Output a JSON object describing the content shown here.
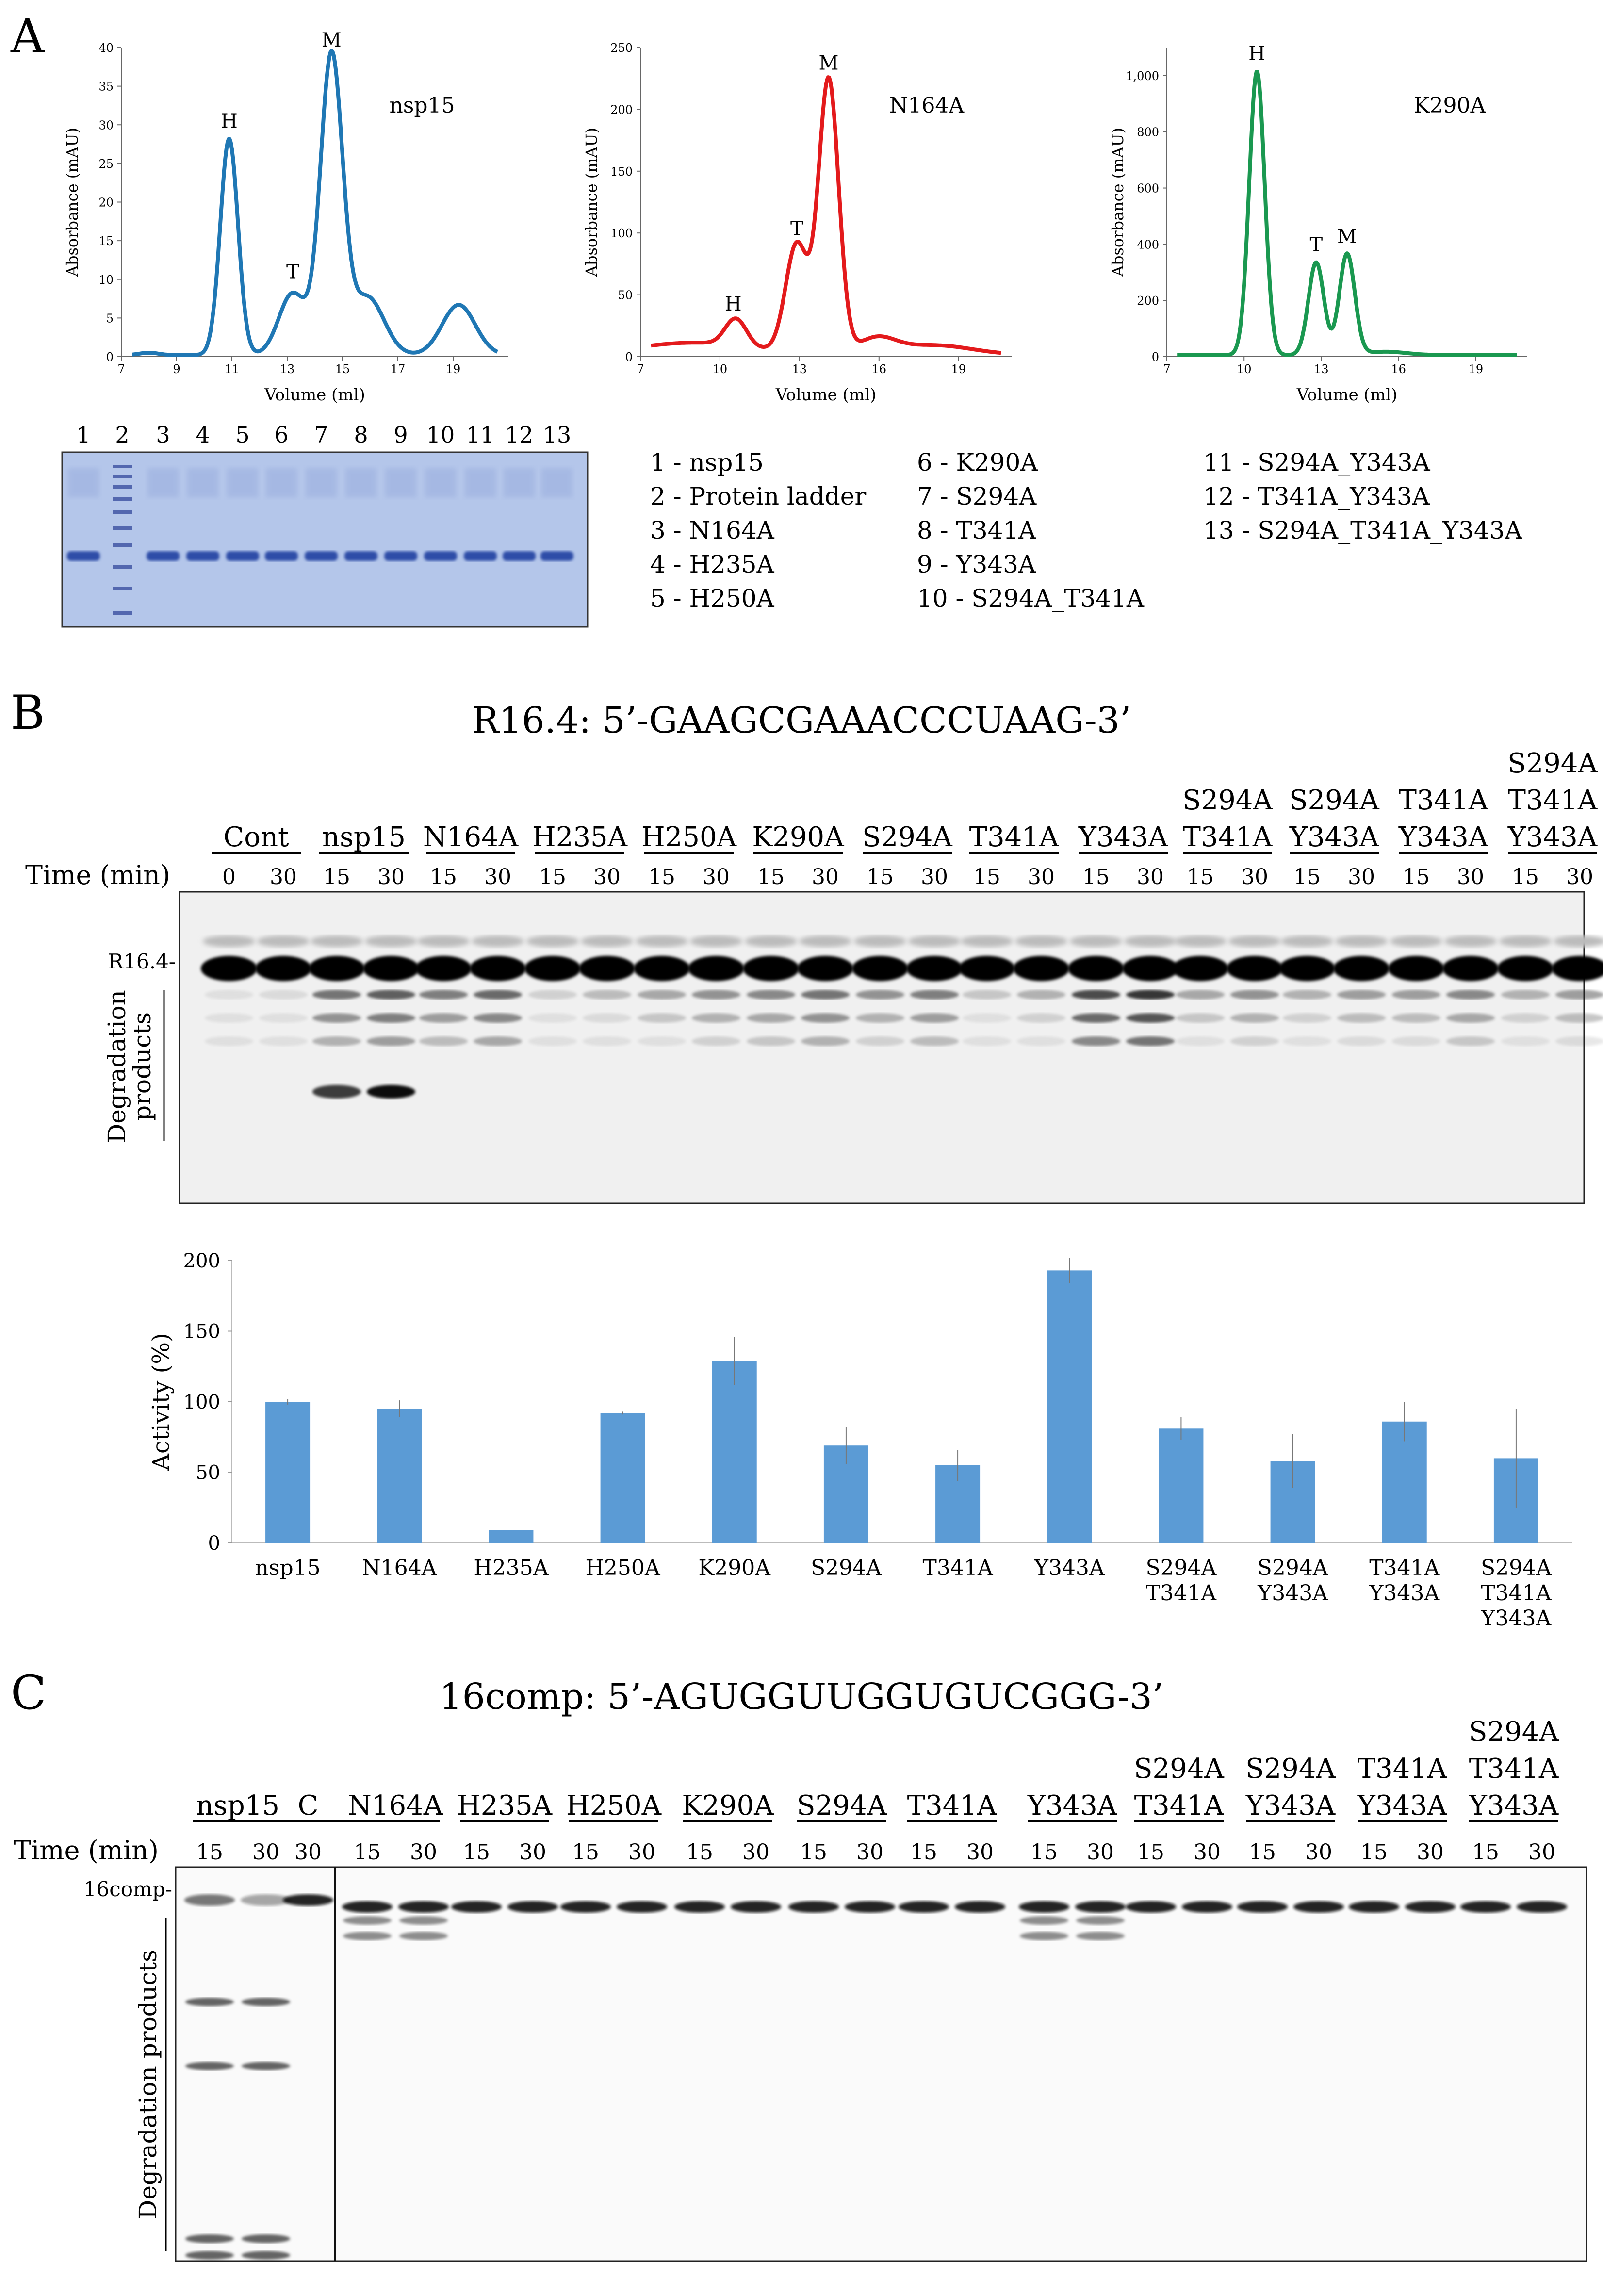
{
  "figure": {
    "panels": {
      "A": "A",
      "B": "B",
      "C": "C"
    }
  },
  "panelA": {
    "chromatograms": [
      {
        "label": "nsp15",
        "color": "#1f77b4",
        "ylabel": "Absorbance (mAU)",
        "xlabel": "Volume (ml)",
        "yticks": [
          "0",
          "5",
          "10",
          "15",
          "20",
          "25",
          "30",
          "35",
          "40"
        ],
        "ymax": 40,
        "xticks": [
          "7",
          "9",
          "11",
          "13",
          "15",
          "17",
          "19"
        ],
        "peaks": [
          {
            "name": "H",
            "x": 10.9,
            "y": 28
          },
          {
            "name": "T",
            "x": 13.2,
            "y": 8.5
          },
          {
            "name": "M",
            "x": 14.6,
            "y": 38.5
          }
        ]
      },
      {
        "label": "N164A",
        "color": "#e31a1c",
        "ylabel": "Absorbance (mAU)",
        "xlabel": "Volume (ml)",
        "yticks": [
          "0",
          "50",
          "100",
          "150",
          "200",
          "250"
        ],
        "ymax": 250,
        "xticks": [
          "7",
          "10",
          "13",
          "16",
          "19"
        ],
        "peaks": [
          {
            "name": "H",
            "x": 10.5,
            "y": 27
          },
          {
            "name": "T",
            "x": 12.9,
            "y": 88
          },
          {
            "name": "M",
            "x": 14.1,
            "y": 222
          }
        ]
      },
      {
        "label": "K290A",
        "color": "#1a9850",
        "ylabel": "Absorbance (mAU)",
        "xlabel": "Volume (ml)",
        "yticks": [
          "0",
          "200",
          "400",
          "600",
          "800",
          "1,000"
        ],
        "ymax": 1100,
        "xticks": [
          "7",
          "10",
          "13",
          "16",
          "19"
        ],
        "peaks": [
          {
            "name": "H",
            "x": 10.5,
            "y": 1010
          },
          {
            "name": "T",
            "x": 12.8,
            "y": 330
          },
          {
            "name": "M",
            "x": 14.0,
            "y": 360
          }
        ]
      }
    ],
    "gel_lanes": [
      "1",
      "2",
      "3",
      "4",
      "5",
      "6",
      "7",
      "8",
      "9",
      "10",
      "11",
      "12",
      "13"
    ],
    "legend": [
      "1 - nsp15",
      "2 - Protein ladder",
      "3 - N164A",
      "4 - H235A",
      "5 - H250A",
      "6 - K290A",
      "7 - S294A",
      "8 - T341A",
      "9 - Y343A",
      "10 - S294A_T341A",
      "11 - S294A_Y343A",
      "12 - T341A_Y343A",
      "13 - S294A_T341A_Y343A"
    ]
  },
  "panelB": {
    "title": "R16.4: 5’-GAAGCGAAACCCUAAG-3’",
    "time_label": "Time (min)",
    "groups": [
      {
        "lines": [
          "Cont"
        ],
        "times": [
          "0",
          "30"
        ]
      },
      {
        "lines": [
          "nsp15"
        ],
        "times": [
          "15",
          "30"
        ]
      },
      {
        "lines": [
          "N164A"
        ],
        "times": [
          "15",
          "30"
        ]
      },
      {
        "lines": [
          "H235A"
        ],
        "times": [
          "15",
          "30"
        ]
      },
      {
        "lines": [
          "H250A"
        ],
        "times": [
          "15",
          "30"
        ]
      },
      {
        "lines": [
          "K290A"
        ],
        "times": [
          "15",
          "30"
        ]
      },
      {
        "lines": [
          "S294A"
        ],
        "times": [
          "15",
          "30"
        ]
      },
      {
        "lines": [
          "T341A"
        ],
        "times": [
          "15",
          "30"
        ]
      },
      {
        "lines": [
          "Y343A"
        ],
        "times": [
          "15",
          "30"
        ]
      },
      {
        "lines": [
          "S294A",
          "T341A"
        ],
        "times": [
          "15",
          "30"
        ]
      },
      {
        "lines": [
          "S294A",
          "Y343A"
        ],
        "times": [
          "15",
          "30"
        ]
      },
      {
        "lines": [
          "T341A",
          "Y343A"
        ],
        "times": [
          "15",
          "30"
        ]
      },
      {
        "lines": [
          "S294A",
          "T341A",
          "Y343A"
        ],
        "times": [
          "15",
          "30"
        ]
      }
    ],
    "band_label": "R16.4-",
    "degradation_label": [
      "Degradation",
      "products"
    ]
  },
  "chart_data": {
    "type": "bar",
    "title": "",
    "xlabel": "",
    "ylabel": "Activity (%)",
    "ylim": [
      0,
      200
    ],
    "yticks": [
      "0",
      "50",
      "100",
      "150",
      "200"
    ],
    "categories": [
      [
        "nsp15"
      ],
      [
        "N164A"
      ],
      [
        "H235A"
      ],
      [
        "H250A"
      ],
      [
        "K290A"
      ],
      [
        "S294A"
      ],
      [
        "T341A"
      ],
      [
        "Y343A"
      ],
      [
        "S294A",
        "T341A"
      ],
      [
        "S294A",
        "Y343A"
      ],
      [
        "T341A",
        "Y343A"
      ],
      [
        "S294A",
        "T341A",
        "Y343A"
      ]
    ],
    "values": [
      100,
      95,
      9,
      92,
      129,
      69,
      55,
      193,
      81,
      58,
      86,
      60
    ],
    "errors": [
      2,
      6,
      0,
      1,
      17,
      13,
      11,
      9,
      8,
      19,
      14,
      35
    ],
    "color": "#5b9bd5"
  },
  "panelC": {
    "title": "16comp: 5’-AGUGGUUGGUGUCGGG-3’",
    "time_label": "Time (min)",
    "groups": [
      {
        "lines": [
          "nsp15"
        ],
        "times": [
          "15",
          "30"
        ]
      },
      {
        "lines": [
          "C"
        ],
        "times": [
          "30"
        ]
      },
      {
        "lines": [
          "N164A"
        ],
        "times": [
          "15",
          "30"
        ]
      },
      {
        "lines": [
          "H235A"
        ],
        "times": [
          "15",
          "30"
        ]
      },
      {
        "lines": [
          "H250A"
        ],
        "times": [
          "15",
          "30"
        ]
      },
      {
        "lines": [
          "K290A"
        ],
        "times": [
          "15",
          "30"
        ]
      },
      {
        "lines": [
          "S294A"
        ],
        "times": [
          "15",
          "30"
        ]
      },
      {
        "lines": [
          "T341A"
        ],
        "times": [
          "15",
          "30"
        ]
      },
      {
        "lines": [
          "Y343A"
        ],
        "times": [
          "15",
          "30"
        ]
      },
      {
        "lines": [
          "S294A",
          "T341A"
        ],
        "times": [
          "15",
          "30"
        ]
      },
      {
        "lines": [
          "S294A",
          "Y343A"
        ],
        "times": [
          "15",
          "30"
        ]
      },
      {
        "lines": [
          "T341A",
          "Y343A"
        ],
        "times": [
          "15",
          "30"
        ]
      },
      {
        "lines": [
          "S294A",
          "T341A",
          "Y343A"
        ],
        "times": [
          "15",
          "30"
        ]
      }
    ],
    "band_label": "16comp-",
    "degradation_label": "Degradation products"
  }
}
